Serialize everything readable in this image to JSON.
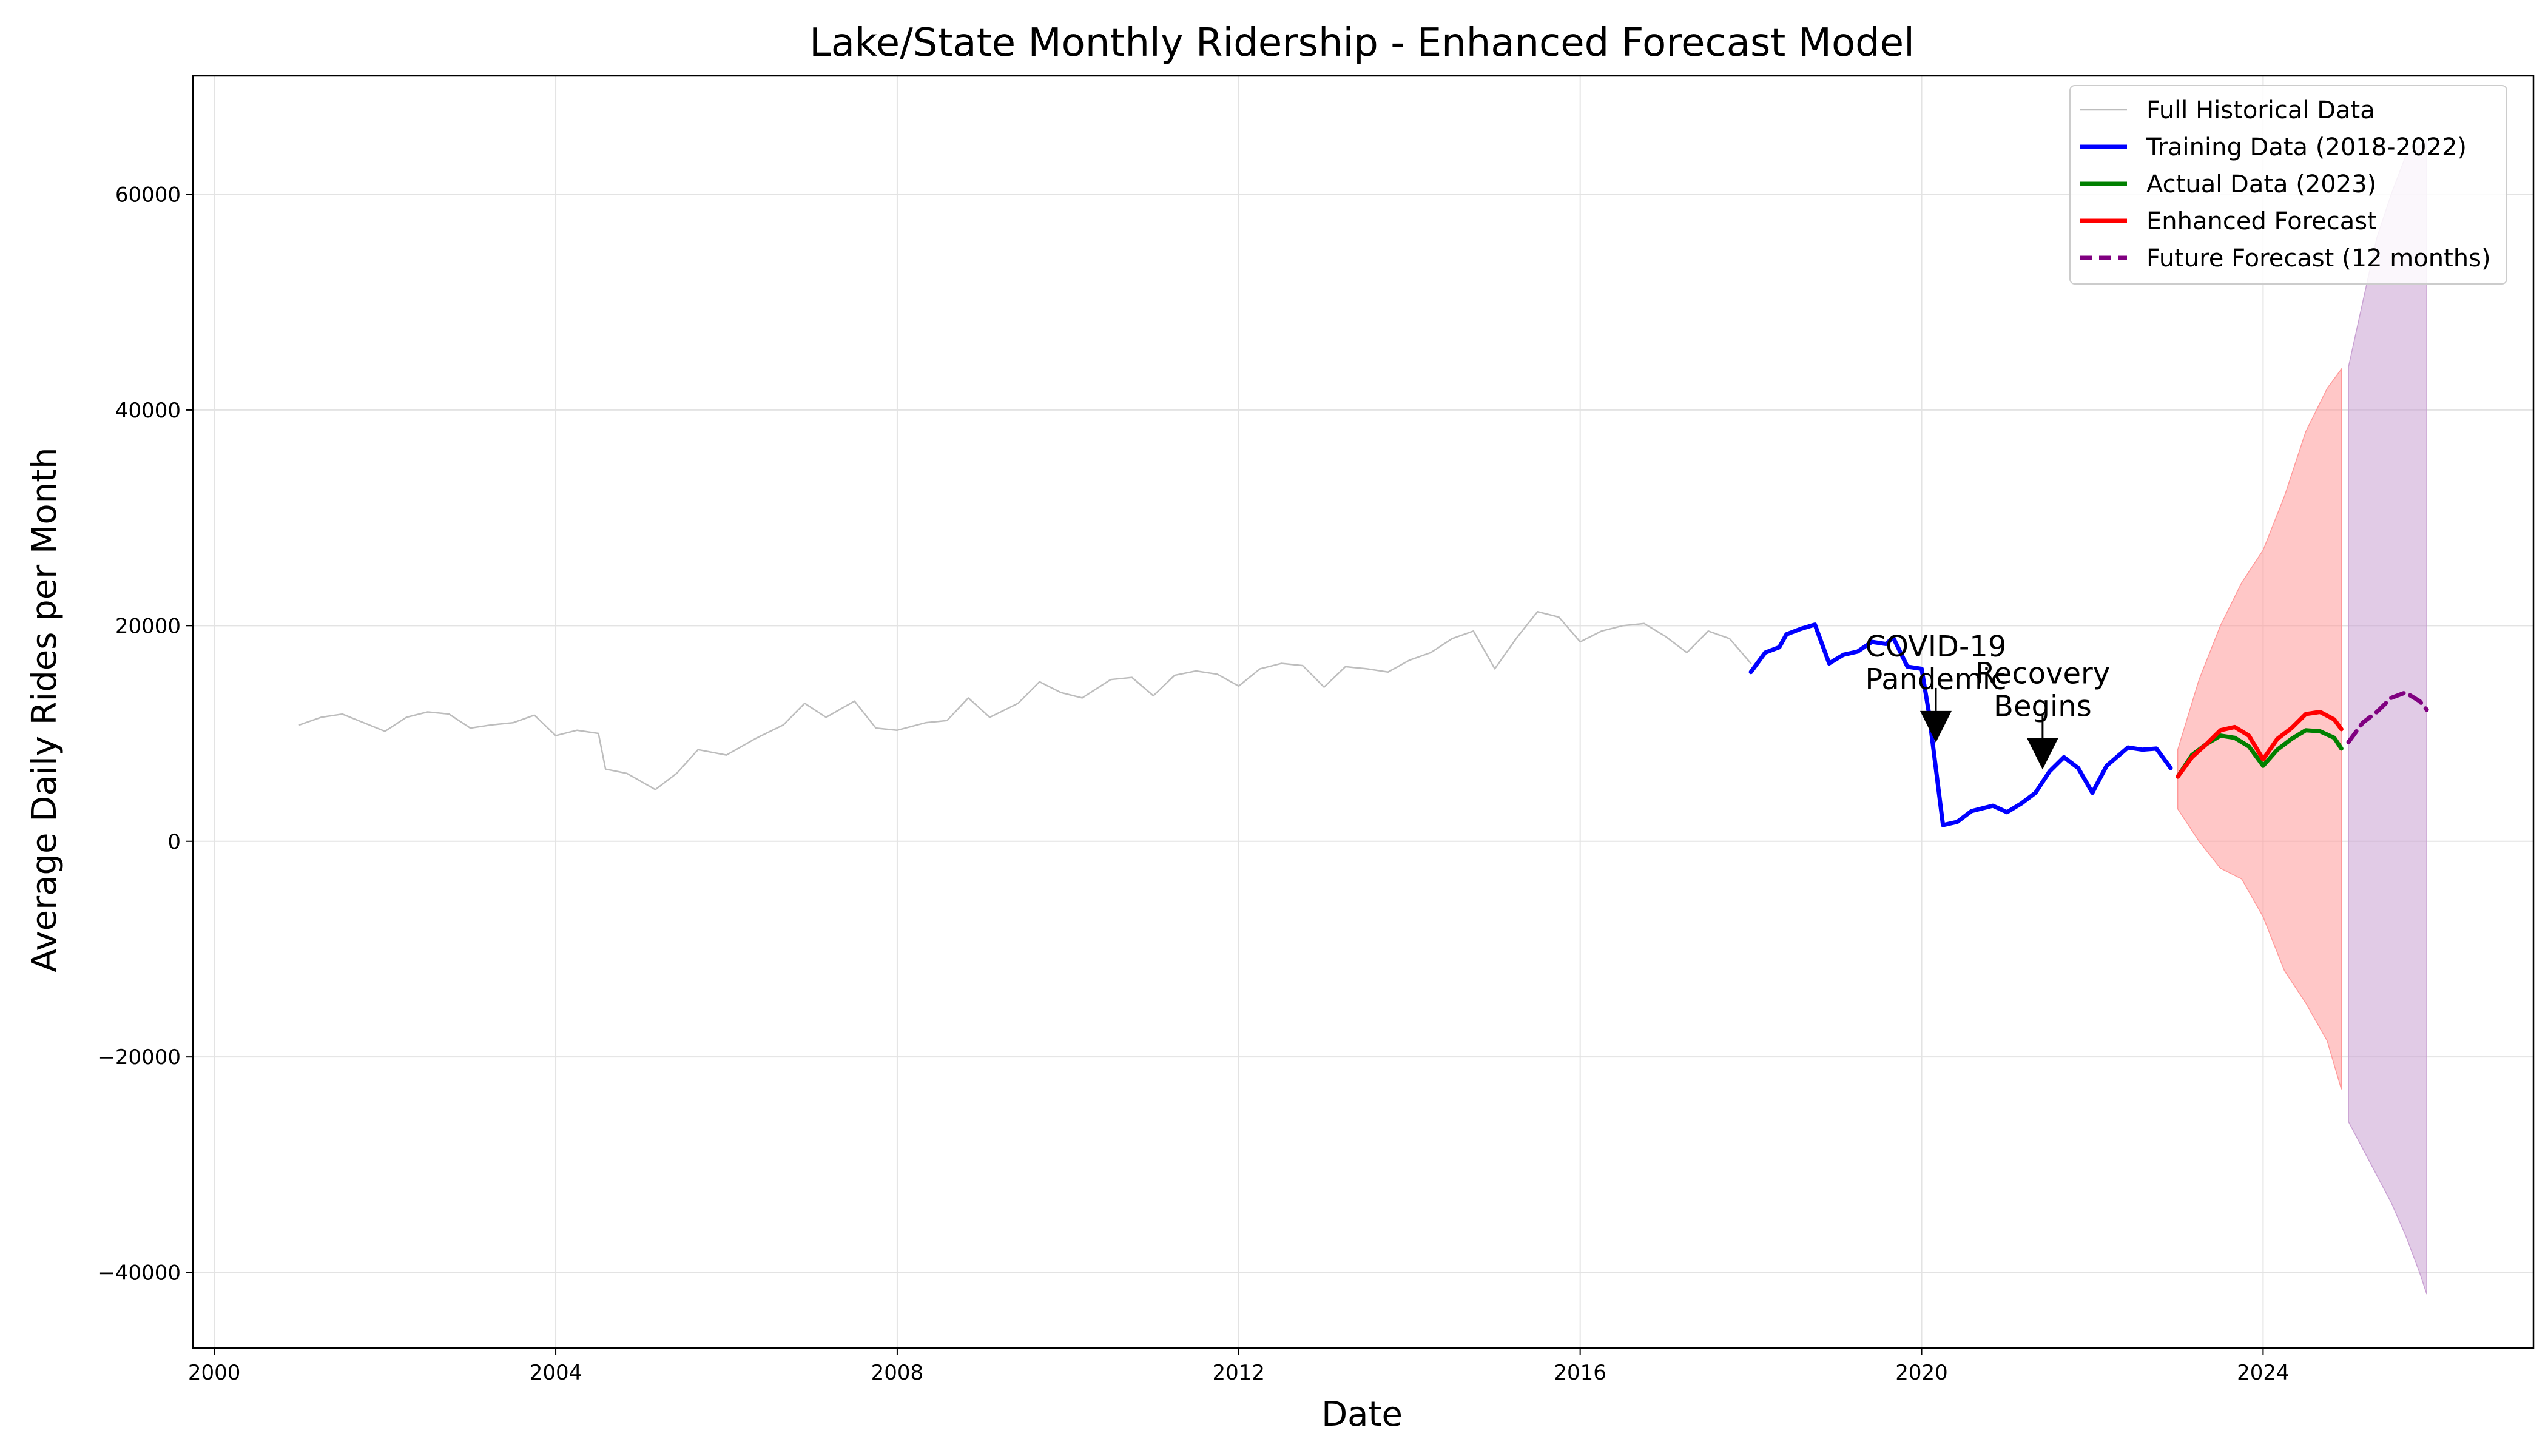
{
  "chart_data": {
    "type": "line",
    "title": "Lake/State Monthly Ridership - Enhanced Forecast Model",
    "xlabel": "Date",
    "ylabel": "Average Daily Rides per Month",
    "xlim": [
      "1999-10-01",
      "2027-03-01"
    ],
    "ylim": [
      -47000,
      71000
    ],
    "x_ticks": [
      "2000",
      "2004",
      "2008",
      "2012",
      "2016",
      "2020",
      "2024"
    ],
    "y_ticks": [
      -40000,
      -20000,
      0,
      20000,
      40000,
      60000
    ],
    "grid": true,
    "legend_position": "top-right",
    "legend": [
      {
        "label": "Full Historical Data",
        "color": "#bdbdbd",
        "style": "thin"
      },
      {
        "label": "Training Data (2018-2022)",
        "color": "#0000ff",
        "style": "solid"
      },
      {
        "label": "Actual Data (2023)",
        "color": "#008000",
        "style": "solid"
      },
      {
        "label": "Enhanced Forecast",
        "color": "#ff0000",
        "style": "solid"
      },
      {
        "label": "Future Forecast (12 months)",
        "color": "#800080",
        "style": "dashed"
      }
    ],
    "annotations": [
      {
        "line1": "COVID-19",
        "line2": "Pandemic",
        "x": "2020-03-01",
        "y": 9500
      },
      {
        "line1": "Recovery",
        "line2": "Begins",
        "x": "2021-06-01",
        "y": 7000
      }
    ],
    "series": [
      {
        "name": "Full Historical Data",
        "color": "#bdbdbd",
        "points": [
          [
            "2001-01",
            10800
          ],
          [
            "2001-04",
            11500
          ],
          [
            "2001-07",
            11800
          ],
          [
            "2001-10",
            11000
          ],
          [
            "2002-01",
            10200
          ],
          [
            "2002-04",
            11500
          ],
          [
            "2002-07",
            12000
          ],
          [
            "2002-10",
            11800
          ],
          [
            "2003-01",
            10500
          ],
          [
            "2003-04",
            10800
          ],
          [
            "2003-07",
            11000
          ],
          [
            "2003-10",
            11700
          ],
          [
            "2004-01",
            9800
          ],
          [
            "2004-04",
            10300
          ],
          [
            "2004-07",
            10000
          ],
          [
            "2004-08",
            6700
          ],
          [
            "2004-11",
            6300
          ],
          [
            "2005-03",
            4800
          ],
          [
            "2005-06",
            6300
          ],
          [
            "2005-09",
            8500
          ],
          [
            "2006-01",
            8000
          ],
          [
            "2006-05",
            9500
          ],
          [
            "2006-09",
            10800
          ],
          [
            "2006-12",
            12800
          ],
          [
            "2007-03",
            11500
          ],
          [
            "2007-07",
            13000
          ],
          [
            "2007-10",
            10500
          ],
          [
            "2008-01",
            10300
          ],
          [
            "2008-05",
            11000
          ],
          [
            "2008-08",
            11200
          ],
          [
            "2008-11",
            13300
          ],
          [
            "2009-02",
            11500
          ],
          [
            "2009-06",
            12800
          ],
          [
            "2009-09",
            14800
          ],
          [
            "2009-12",
            13800
          ],
          [
            "2010-03",
            13300
          ],
          [
            "2010-07",
            15000
          ],
          [
            "2010-10",
            15200
          ],
          [
            "2011-01",
            13500
          ],
          [
            "2011-04",
            15400
          ],
          [
            "2011-07",
            15800
          ],
          [
            "2011-10",
            15500
          ],
          [
            "2012-01",
            14400
          ],
          [
            "2012-04",
            16000
          ],
          [
            "2012-07",
            16500
          ],
          [
            "2012-10",
            16300
          ],
          [
            "2013-01",
            14300
          ],
          [
            "2013-04",
            16200
          ],
          [
            "2013-07",
            16000
          ],
          [
            "2013-10",
            15700
          ],
          [
            "2014-01",
            16800
          ],
          [
            "2014-04",
            17500
          ],
          [
            "2014-07",
            18800
          ],
          [
            "2014-10",
            19500
          ],
          [
            "2015-01",
            16000
          ],
          [
            "2015-04",
            18800
          ],
          [
            "2015-07",
            21300
          ],
          [
            "2015-10",
            20800
          ],
          [
            "2016-01",
            18500
          ],
          [
            "2016-04",
            19500
          ],
          [
            "2016-07",
            20000
          ],
          [
            "2016-10",
            20200
          ],
          [
            "2017-01",
            19000
          ],
          [
            "2017-04",
            17500
          ],
          [
            "2017-07",
            19500
          ],
          [
            "2017-10",
            18800
          ],
          [
            "2018-01",
            16500
          ]
        ]
      },
      {
        "name": "Training Data (2018-2022)",
        "color": "#0000ff",
        "points": [
          [
            "2018-01",
            15700
          ],
          [
            "2018-03",
            17500
          ],
          [
            "2018-05",
            18000
          ],
          [
            "2018-06",
            19200
          ],
          [
            "2018-08",
            19700
          ],
          [
            "2018-10",
            20100
          ],
          [
            "2018-12",
            16500
          ],
          [
            "2019-02",
            17300
          ],
          [
            "2019-04",
            17600
          ],
          [
            "2019-06",
            18500
          ],
          [
            "2019-08",
            18300
          ],
          [
            "2019-09",
            18900
          ],
          [
            "2019-11",
            16200
          ],
          [
            "2020-01",
            16000
          ],
          [
            "2020-02",
            12000
          ],
          [
            "2020-04",
            1500
          ],
          [
            "2020-06",
            1800
          ],
          [
            "2020-08",
            2800
          ],
          [
            "2020-11",
            3300
          ],
          [
            "2021-01",
            2700
          ],
          [
            "2021-03",
            3500
          ],
          [
            "2021-05",
            4500
          ],
          [
            "2021-07",
            6500
          ],
          [
            "2021-09",
            7800
          ],
          [
            "2021-11",
            6800
          ],
          [
            "2022-01",
            4500
          ],
          [
            "2022-03",
            7000
          ],
          [
            "2022-06",
            8700
          ],
          [
            "2022-08",
            8500
          ],
          [
            "2022-10",
            8600
          ],
          [
            "2022-12",
            6800
          ]
        ]
      },
      {
        "name": "Actual Data (2023)",
        "color": "#008000",
        "points": [
          [
            "2023-01",
            6000
          ],
          [
            "2023-03",
            8000
          ],
          [
            "2023-05",
            9000
          ],
          [
            "2023-07",
            9800
          ],
          [
            "2023-09",
            9600
          ],
          [
            "2023-11",
            8800
          ],
          [
            "2024-01",
            7000
          ],
          [
            "2024-03",
            8500
          ],
          [
            "2024-05",
            9500
          ],
          [
            "2024-07",
            10300
          ],
          [
            "2024-09",
            10200
          ],
          [
            "2024-11",
            9600
          ],
          [
            "2024-12",
            8600
          ]
        ]
      },
      {
        "name": "Enhanced Forecast",
        "color": "#ff0000",
        "points": [
          [
            "2023-01",
            6000
          ],
          [
            "2023-03",
            7800
          ],
          [
            "2023-05",
            9000
          ],
          [
            "2023-07",
            10300
          ],
          [
            "2023-09",
            10600
          ],
          [
            "2023-11",
            9800
          ],
          [
            "2024-01",
            7600
          ],
          [
            "2024-03",
            9500
          ],
          [
            "2024-05",
            10500
          ],
          [
            "2024-07",
            11800
          ],
          [
            "2024-09",
            12000
          ],
          [
            "2024-11",
            11300
          ],
          [
            "2024-12",
            10400
          ]
        ]
      },
      {
        "name": "Future Forecast (12 months)",
        "color": "#800080",
        "points": [
          [
            "2025-01",
            9200
          ],
          [
            "2025-03",
            11000
          ],
          [
            "2025-05",
            12000
          ],
          [
            "2025-07",
            13300
          ],
          [
            "2025-09",
            13800
          ],
          [
            "2025-11",
            13000
          ],
          [
            "2025-12",
            12200
          ]
        ]
      }
    ],
    "bands": [
      {
        "name": "Enhanced Forecast interval",
        "color": "#ff9999",
        "points": [
          [
            "2023-01",
            3000,
            8500
          ],
          [
            "2023-04",
            0,
            15000
          ],
          [
            "2023-07",
            -2500,
            20000
          ],
          [
            "2023-10",
            -3500,
            24000
          ],
          [
            "2024-01",
            -7000,
            27000
          ],
          [
            "2024-04",
            -12000,
            32000
          ],
          [
            "2024-07",
            -15000,
            38000
          ],
          [
            "2024-10",
            -18500,
            42000
          ],
          [
            "2024-12",
            -23000,
            43800
          ]
        ]
      },
      {
        "name": "Future Forecast interval",
        "color": "#c8a0d2",
        "points": [
          [
            "2025-01",
            -26000,
            44000
          ],
          [
            "2025-03",
            -28500,
            50000
          ],
          [
            "2025-05",
            -31000,
            56000
          ],
          [
            "2025-07",
            -33500,
            60000
          ],
          [
            "2025-09",
            -36500,
            63500
          ],
          [
            "2025-11",
            -40000,
            64500
          ],
          [
            "2025-12",
            -42000,
            65000
          ]
        ]
      }
    ]
  }
}
